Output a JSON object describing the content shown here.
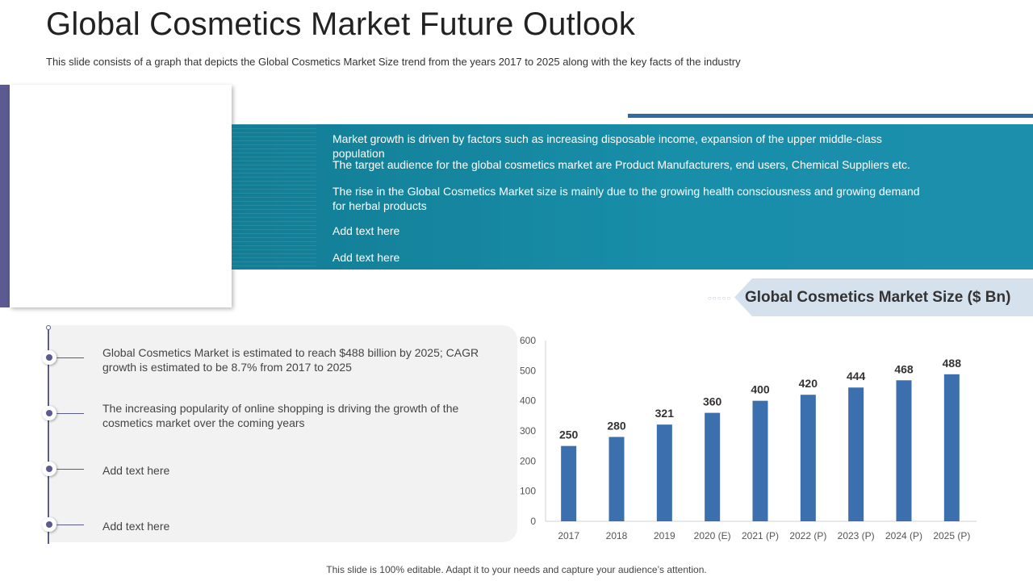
{
  "slide": {
    "title": "Global Cosmetics Market Future Outlook",
    "subtitle": "This slide consists of a graph that depicts the Global Cosmetics Market Size trend from the years 2017 to 2025 along with the key facts of the industry",
    "footer": "This slide is 100% editable. Adapt it to your needs and capture your audience’s attention."
  },
  "colors": {
    "accent_purple": "#5b5a91",
    "banner_teal": "#188ea9",
    "bar_blue": "#3b6fae",
    "header_bg": "#d6e1ee"
  },
  "facts": [
    "Market growth is driven by factors such as increasing disposable income, expansion of the upper middle-class population",
    "The target audience for the global cosmetics market are Product Manufacturers, end users, Chemical Suppliers etc.",
    "The rise in the Global Cosmetics Market size is mainly due to the growing health consciousness and growing demand for herbal products",
    "Add text here",
    "Add text here"
  ],
  "key_facts": [
    "Global Cosmetics Market is estimated to reach $488 billion by 2025; CAGR growth is estimated to be 8.7% from 2017 to 2025",
    "The increasing popularity of online shopping is driving the growth of the cosmetics market over the coming years",
    "Add text here",
    "Add text here"
  ],
  "chart_data": {
    "type": "bar",
    "title": "Global Cosmetics Market Size ($ Bn)",
    "categories": [
      "2017",
      "2018",
      "2019",
      "2020 (E)",
      "2021 (P)",
      "2022 (P)",
      "2023 (P)",
      "2024 (P)",
      "2025 (P)"
    ],
    "values": [
      250,
      280,
      321,
      360,
      400,
      420,
      444,
      468,
      488
    ],
    "ylim": [
      0,
      600
    ],
    "yticks": [
      0,
      100,
      200,
      300,
      400,
      500,
      600
    ],
    "grid": false,
    "legend": "none"
  }
}
